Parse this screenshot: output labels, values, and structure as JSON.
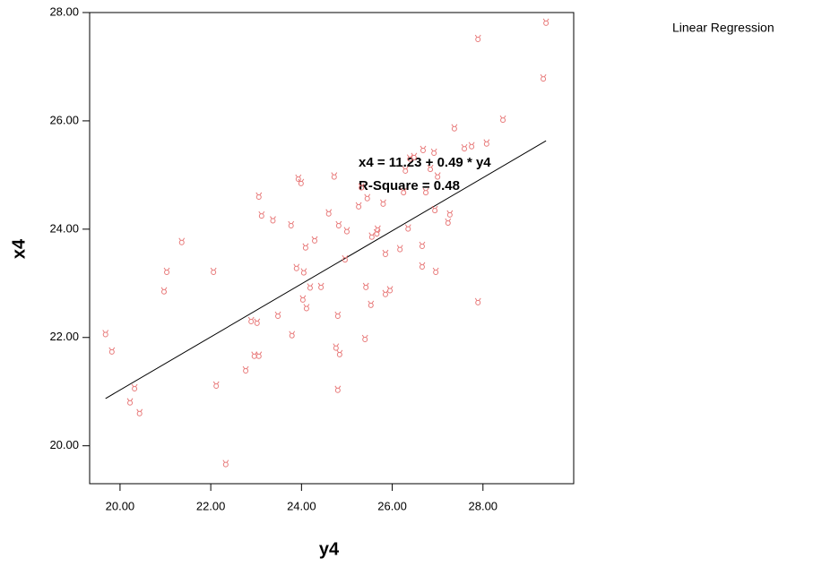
{
  "chart_data": {
    "type": "scatter",
    "title": "Linear Regression",
    "x_label": "y4",
    "y_label": "x4",
    "annotations": [
      "x4 = 11.23 + 0.49 * y4",
      "R-Square = 0.48"
    ],
    "fit": {
      "intercept": 11.23,
      "slope": 0.49
    },
    "color": "#e87a7a",
    "xlim": [
      19.33,
      30.0
    ],
    "ylim": [
      19.3,
      28.0
    ],
    "xticks": [
      {
        "value": 20,
        "label": "20.00"
      },
      {
        "value": 22,
        "label": "22.00"
      },
      {
        "value": 24,
        "label": "24.00"
      },
      {
        "value": 26,
        "label": "26.00"
      },
      {
        "value": 28,
        "label": "28.00"
      }
    ],
    "yticks": [
      {
        "value": 20,
        "label": "20.00"
      },
      {
        "value": 22,
        "label": "22.00"
      },
      {
        "value": 24,
        "label": "24.00"
      },
      {
        "value": 26,
        "label": "26.00"
      },
      {
        "value": 28,
        "label": "28.00"
      }
    ],
    "x": [
      19.68,
      19.82,
      20.32,
      20.22,
      20.43,
      20.97,
      21.03,
      21.36,
      22.06,
      22.12,
      22.33,
      22.77,
      22.89,
      23.02,
      22.96,
      23.06,
      23.06,
      23.12,
      23.37,
      23.48,
      23.77,
      23.79,
      23.89,
      23.93,
      23.99,
      24.03,
      24.05,
      24.09,
      24.11,
      24.19,
      24.29,
      24.43,
      24.6,
      24.72,
      24.76,
      24.8,
      24.84,
      24.8,
      24.82,
      24.96,
      25.0,
      25.26,
      25.32,
      25.42,
      25.4,
      25.45,
      25.53,
      25.55,
      25.66,
      25.68,
      25.8,
      25.85,
      25.85,
      25.95,
      26.17,
      26.25,
      26.29,
      26.39,
      26.48,
      26.35,
      26.66,
      26.66,
      26.68,
      26.74,
      26.84,
      26.92,
      26.94,
      26.96,
      27.0,
      27.23,
      27.27,
      27.37,
      27.59,
      27.75,
      27.89,
      27.89,
      28.08,
      28.44,
      29.39,
      29.33
    ],
    "y": [
      22.07,
      21.75,
      21.07,
      20.81,
      20.61,
      22.86,
      23.22,
      23.77,
      23.22,
      21.12,
      19.67,
      21.4,
      22.31,
      22.28,
      21.67,
      21.67,
      24.61,
      24.26,
      24.17,
      22.41,
      24.08,
      22.05,
      23.29,
      24.94,
      24.86,
      22.71,
      23.21,
      23.67,
      22.55,
      22.93,
      23.8,
      22.94,
      24.3,
      24.98,
      21.82,
      22.41,
      21.7,
      21.04,
      24.08,
      23.45,
      23.97,
      24.43,
      24.78,
      22.94,
      21.98,
      24.58,
      22.61,
      23.87,
      23.93,
      24.0,
      24.48,
      23.55,
      22.81,
      22.88,
      23.64,
      24.69,
      25.09,
      25.31,
      25.34,
      24.02,
      23.32,
      23.7,
      25.47,
      24.69,
      25.12,
      25.42,
      24.36,
      23.22,
      24.98,
      24.13,
      24.28,
      25.87,
      25.5,
      25.54,
      27.52,
      22.66,
      25.59,
      26.03,
      27.82,
      26.79
    ]
  }
}
